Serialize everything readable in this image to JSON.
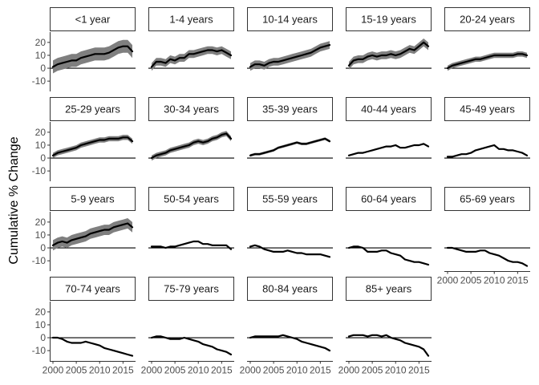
{
  "chart_data": {
    "type": "line",
    "ylabel": "Cumulative % Change",
    "xlabel": "",
    "xlim": [
      2000,
      2017
    ],
    "ylim": [
      -18,
      28
    ],
    "x_ticks": [
      2000,
      2005,
      2010,
      2015
    ],
    "x_tick_labels": [
      "2000",
      "2005",
      "2010",
      "2015"
    ],
    "y_ticks": [
      -10,
      0,
      10,
      20
    ],
    "y_tick_labels": [
      "-10",
      "0",
      "10",
      "20"
    ],
    "reference_line": 0,
    "grid": false,
    "legend": "none",
    "colors": {
      "line": "#000000",
      "ribbon": "#7f7f7f",
      "strip_border": "#333333",
      "axis": "#333333"
    },
    "years": [
      2000,
      2001,
      2002,
      2003,
      2004,
      2005,
      2006,
      2007,
      2008,
      2009,
      2010,
      2011,
      2012,
      2013,
      2014,
      2015,
      2016,
      2017
    ],
    "panels": [
      {
        "label": "<1 year",
        "values": [
          1,
          3,
          4,
          5,
          6,
          6,
          8,
          9,
          10,
          11,
          11,
          11,
          12,
          14,
          16,
          17,
          17,
          13
        ],
        "ribbon": 5
      },
      {
        "label": "1-4 years",
        "values": [
          1,
          5,
          5,
          4,
          7,
          6,
          8,
          8,
          11,
          11,
          12,
          13,
          14,
          14,
          13,
          14,
          12,
          10
        ],
        "ribbon": 3
      },
      {
        "label": "10-14 years",
        "values": [
          1,
          3,
          3,
          2,
          4,
          5,
          5,
          6,
          7,
          8,
          9,
          10,
          11,
          12,
          14,
          16,
          17,
          18
        ],
        "ribbon": 3
      },
      {
        "label": "15-19 years",
        "values": [
          2,
          6,
          7,
          7,
          9,
          10,
          9,
          10,
          10,
          11,
          10,
          11,
          13,
          15,
          14,
          17,
          20,
          17
        ],
        "ribbon": 3
      },
      {
        "label": "20-24 years",
        "values": [
          0,
          2,
          3,
          4,
          5,
          6,
          7,
          7,
          8,
          9,
          10,
          10,
          10,
          10,
          10,
          11,
          11,
          10
        ],
        "ribbon": 2
      },
      {
        "label": "25-29 years",
        "values": [
          2,
          4,
          5,
          6,
          7,
          8,
          10,
          11,
          12,
          13,
          14,
          14,
          15,
          15,
          15,
          16,
          16,
          13
        ],
        "ribbon": 2
      },
      {
        "label": "30-34 years",
        "values": [
          0,
          2,
          3,
          4,
          6,
          7,
          8,
          9,
          10,
          12,
          13,
          12,
          13,
          15,
          16,
          18,
          19,
          15
        ],
        "ribbon": 2
      },
      {
        "label": "35-39 years",
        "values": [
          2,
          3,
          3,
          4,
          5,
          6,
          8,
          9,
          10,
          11,
          12,
          11,
          11,
          12,
          13,
          14,
          15,
          13
        ],
        "ribbon": 1
      },
      {
        "label": "40-44 years",
        "values": [
          2,
          3,
          4,
          4,
          5,
          6,
          7,
          8,
          9,
          9,
          10,
          8,
          8,
          9,
          10,
          10,
          11,
          9
        ],
        "ribbon": 0
      },
      {
        "label": "45-49 years",
        "values": [
          1,
          1,
          2,
          3,
          3,
          4,
          6,
          7,
          8,
          9,
          10,
          7,
          7,
          6,
          6,
          5,
          4,
          2
        ],
        "ribbon": 0
      },
      {
        "label": "5-9 years",
        "values": [
          2,
          4,
          5,
          4,
          6,
          7,
          8,
          9,
          11,
          12,
          13,
          14,
          14,
          16,
          17,
          18,
          19,
          16
        ],
        "ribbon": 4
      },
      {
        "label": "50-54 years",
        "values": [
          1,
          1,
          1,
          0,
          1,
          1,
          2,
          3,
          4,
          5,
          5,
          3,
          3,
          2,
          2,
          2,
          2,
          -1
        ],
        "ribbon": 0
      },
      {
        "label": "55-59 years",
        "values": [
          1,
          2,
          1,
          -1,
          -2,
          -3,
          -3,
          -3,
          -2,
          -3,
          -4,
          -4,
          -5,
          -5,
          -5,
          -5,
          -6,
          -7
        ],
        "ribbon": 0
      },
      {
        "label": "60-64 years",
        "values": [
          0,
          1,
          1,
          0,
          -3,
          -3,
          -3,
          -2,
          -2,
          -4,
          -5,
          -6,
          -9,
          -10,
          -11,
          -11,
          -12,
          -13
        ],
        "ribbon": 0
      },
      {
        "label": "65-69 years",
        "values": [
          0,
          0,
          -1,
          -2,
          -3,
          -3,
          -3,
          -2,
          -2,
          -4,
          -5,
          -6,
          -8,
          -10,
          -11,
          -11,
          -12,
          -14
        ],
        "ribbon": 0
      },
      {
        "label": "70-74 years",
        "values": [
          0,
          0,
          -1,
          -3,
          -4,
          -4,
          -4,
          -3,
          -4,
          -5,
          -6,
          -8,
          -9,
          -10,
          -11,
          -12,
          -13,
          -14
        ],
        "ribbon": 0
      },
      {
        "label": "75-79 years",
        "values": [
          0,
          1,
          1,
          0,
          -1,
          -1,
          -1,
          0,
          -1,
          -2,
          -3,
          -5,
          -6,
          -7,
          -9,
          -10,
          -11,
          -13
        ],
        "ribbon": 0
      },
      {
        "label": "80-84 years",
        "values": [
          0,
          1,
          1,
          1,
          1,
          1,
          1,
          2,
          1,
          0,
          -1,
          -3,
          -4,
          -5,
          -6,
          -7,
          -8,
          -10
        ],
        "ribbon": 0
      },
      {
        "label": "85+ years",
        "values": [
          1,
          2,
          2,
          2,
          1,
          2,
          2,
          1,
          2,
          0,
          -1,
          -2,
          -4,
          -5,
          -6,
          -7,
          -9,
          -14
        ],
        "ribbon": 0
      }
    ]
  }
}
